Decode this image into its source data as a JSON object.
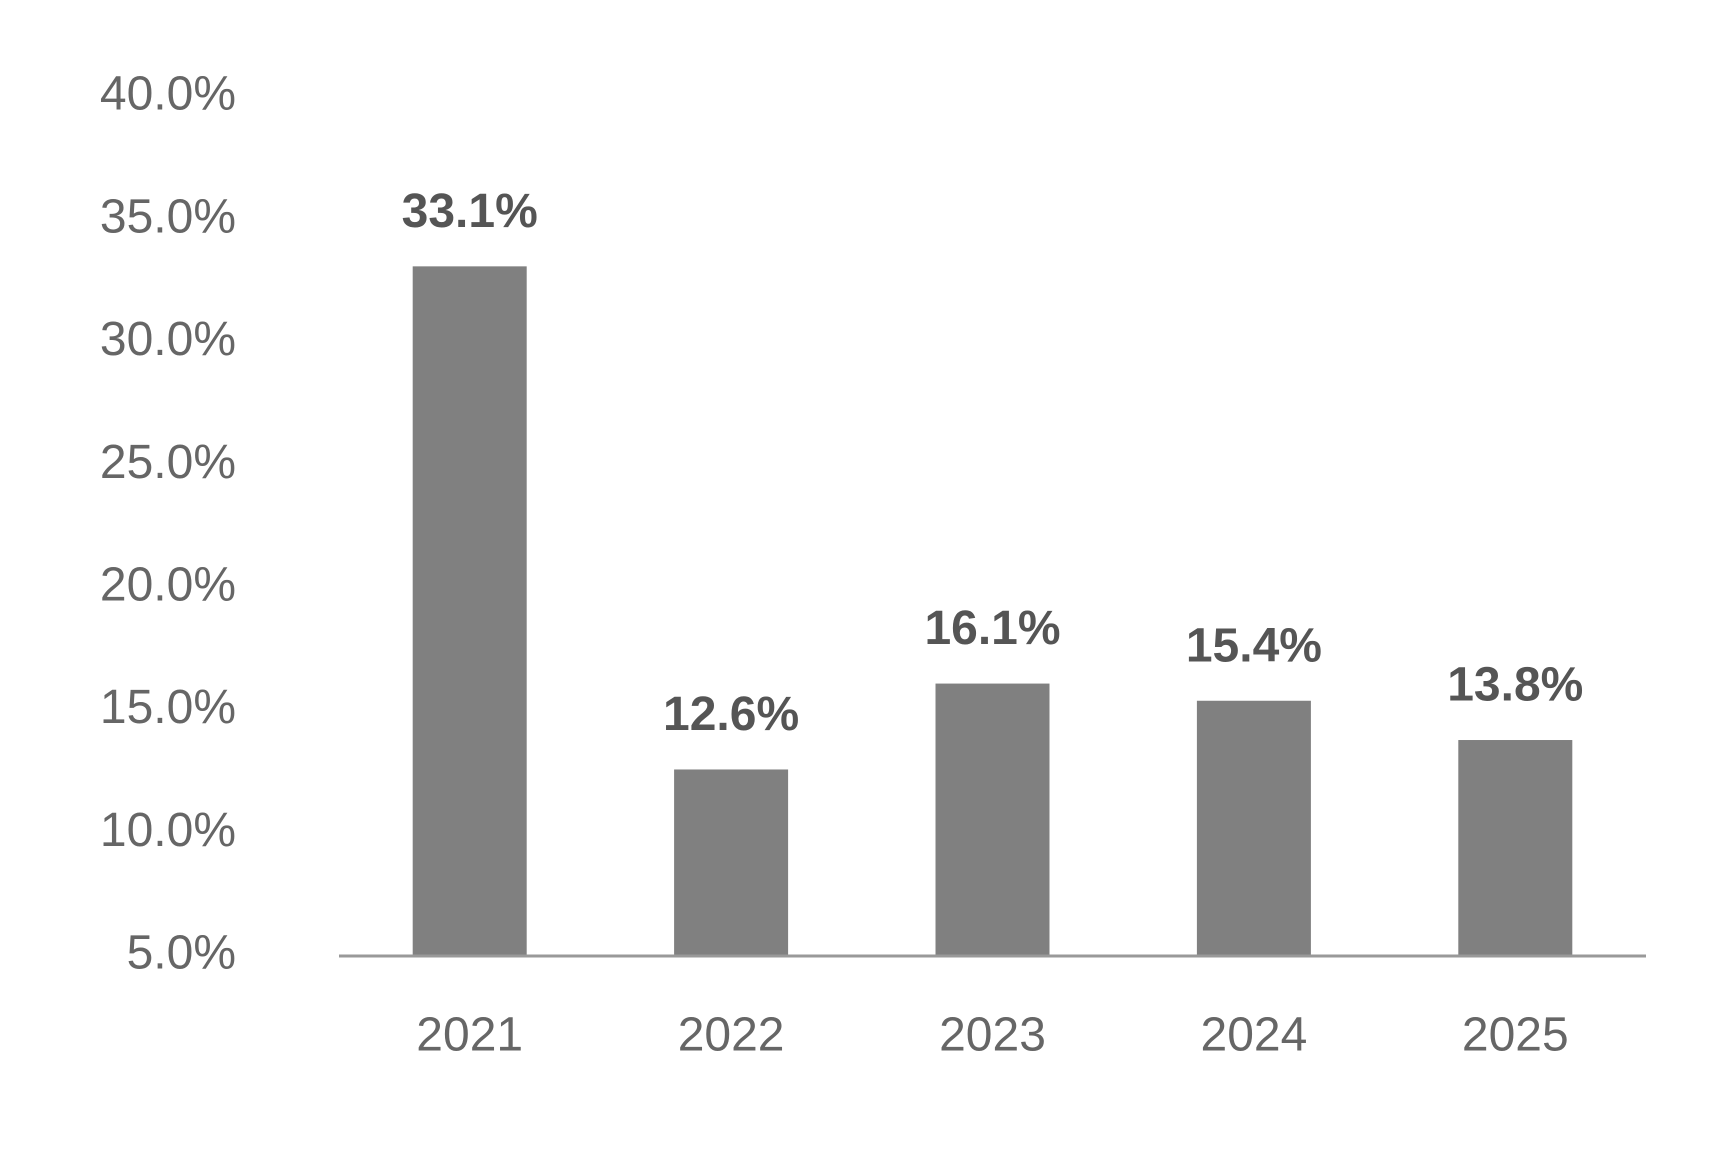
{
  "chart_data": {
    "type": "bar",
    "categories": [
      "2021",
      "2022",
      "2023",
      "2024",
      "2025"
    ],
    "values": [
      33.1,
      12.6,
      16.1,
      15.4,
      13.8
    ],
    "value_labels": [
      "33.1%",
      "12.6%",
      "16.1%",
      "15.4%",
      "13.8%"
    ],
    "color": "#808080",
    "ylim": [
      5,
      40
    ],
    "yticks": [
      {
        "value": 5,
        "label": "5.0%"
      },
      {
        "value": 10,
        "label": "10.0%"
      },
      {
        "value": 15,
        "label": "15.0%"
      },
      {
        "value": 20,
        "label": "20.0%"
      },
      {
        "value": 25,
        "label": "25.0%"
      },
      {
        "value": 30,
        "label": "30.0%"
      },
      {
        "value": 35,
        "label": "35.0%"
      },
      {
        "value": 40,
        "label": "40.0%"
      }
    ],
    "grid": false
  }
}
